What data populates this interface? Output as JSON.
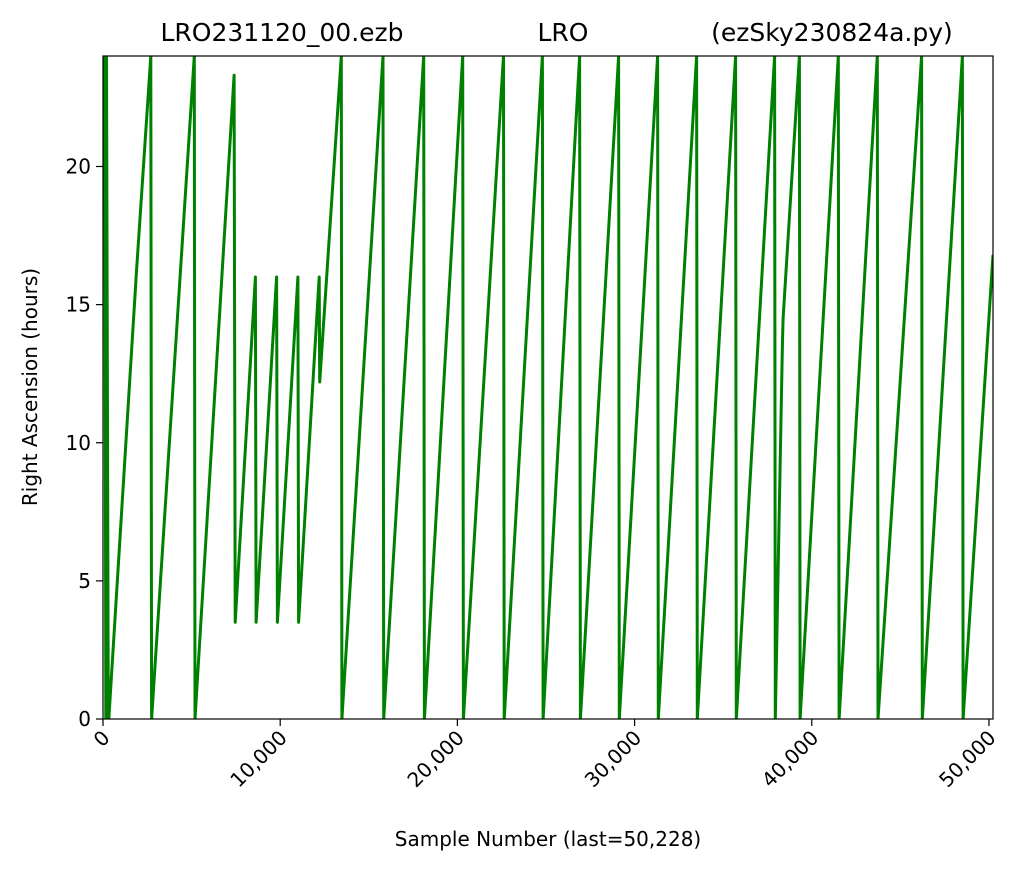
{
  "chart_data": {
    "type": "line",
    "title_parts": [
      "LRO231120_00.ezb",
      "LRO",
      "(ezSky230824a.py)"
    ],
    "xlabel": "Sample Number (last=50,228)",
    "ylabel": "Right Ascension (hours)",
    "xlim": [
      0,
      50228
    ],
    "ylim": [
      0,
      24
    ],
    "x_ticks": [
      0,
      10000,
      20000,
      30000,
      40000,
      50000
    ],
    "x_tick_labels": [
      "0",
      "10,000",
      "20,000",
      "30,000",
      "40,000",
      "50,000"
    ],
    "y_ticks": [
      0,
      5,
      10,
      15,
      20
    ],
    "y_tick_labels": [
      "0",
      "5",
      "10",
      "15",
      "20"
    ],
    "grid": false,
    "series": [
      {
        "color": "#008000",
        "x": [
          0,
          80,
          100,
          160,
          180,
          190,
          200,
          300,
          330,
          1850,
          1870,
          2700,
          2740,
          5150,
          5190,
          7400,
          7460,
          8600,
          8640,
          9800,
          9840,
          11000,
          11040,
          12200,
          12230,
          13450,
          13480,
          15800,
          15840,
          18100,
          18140,
          20300,
          20340,
          22600,
          22640,
          24800,
          24840,
          26900,
          26940,
          29100,
          29140,
          31300,
          31340,
          33500,
          33540,
          35700,
          35740,
          37900,
          37940,
          38350,
          38380,
          39300,
          39340,
          41500,
          41540,
          43700,
          43740,
          46200,
          46240,
          48500,
          48540,
          50228
        ],
        "values": [
          22.5,
          20.5,
          24,
          0,
          24,
          15,
          24,
          0,
          0,
          15.8,
          16,
          24,
          0,
          24,
          0,
          23.3,
          3.5,
          16,
          3.5,
          16,
          3.5,
          16,
          3.5,
          16,
          12.2,
          24,
          0,
          24,
          0,
          24,
          0,
          24,
          0,
          24,
          0,
          24,
          0,
          24,
          0,
          24,
          0,
          24,
          0,
          24,
          0,
          24,
          0,
          24,
          0,
          13.7,
          14.5,
          24,
          0,
          24,
          0,
          24,
          0,
          24,
          0,
          24,
          0,
          16.8
        ]
      }
    ]
  }
}
